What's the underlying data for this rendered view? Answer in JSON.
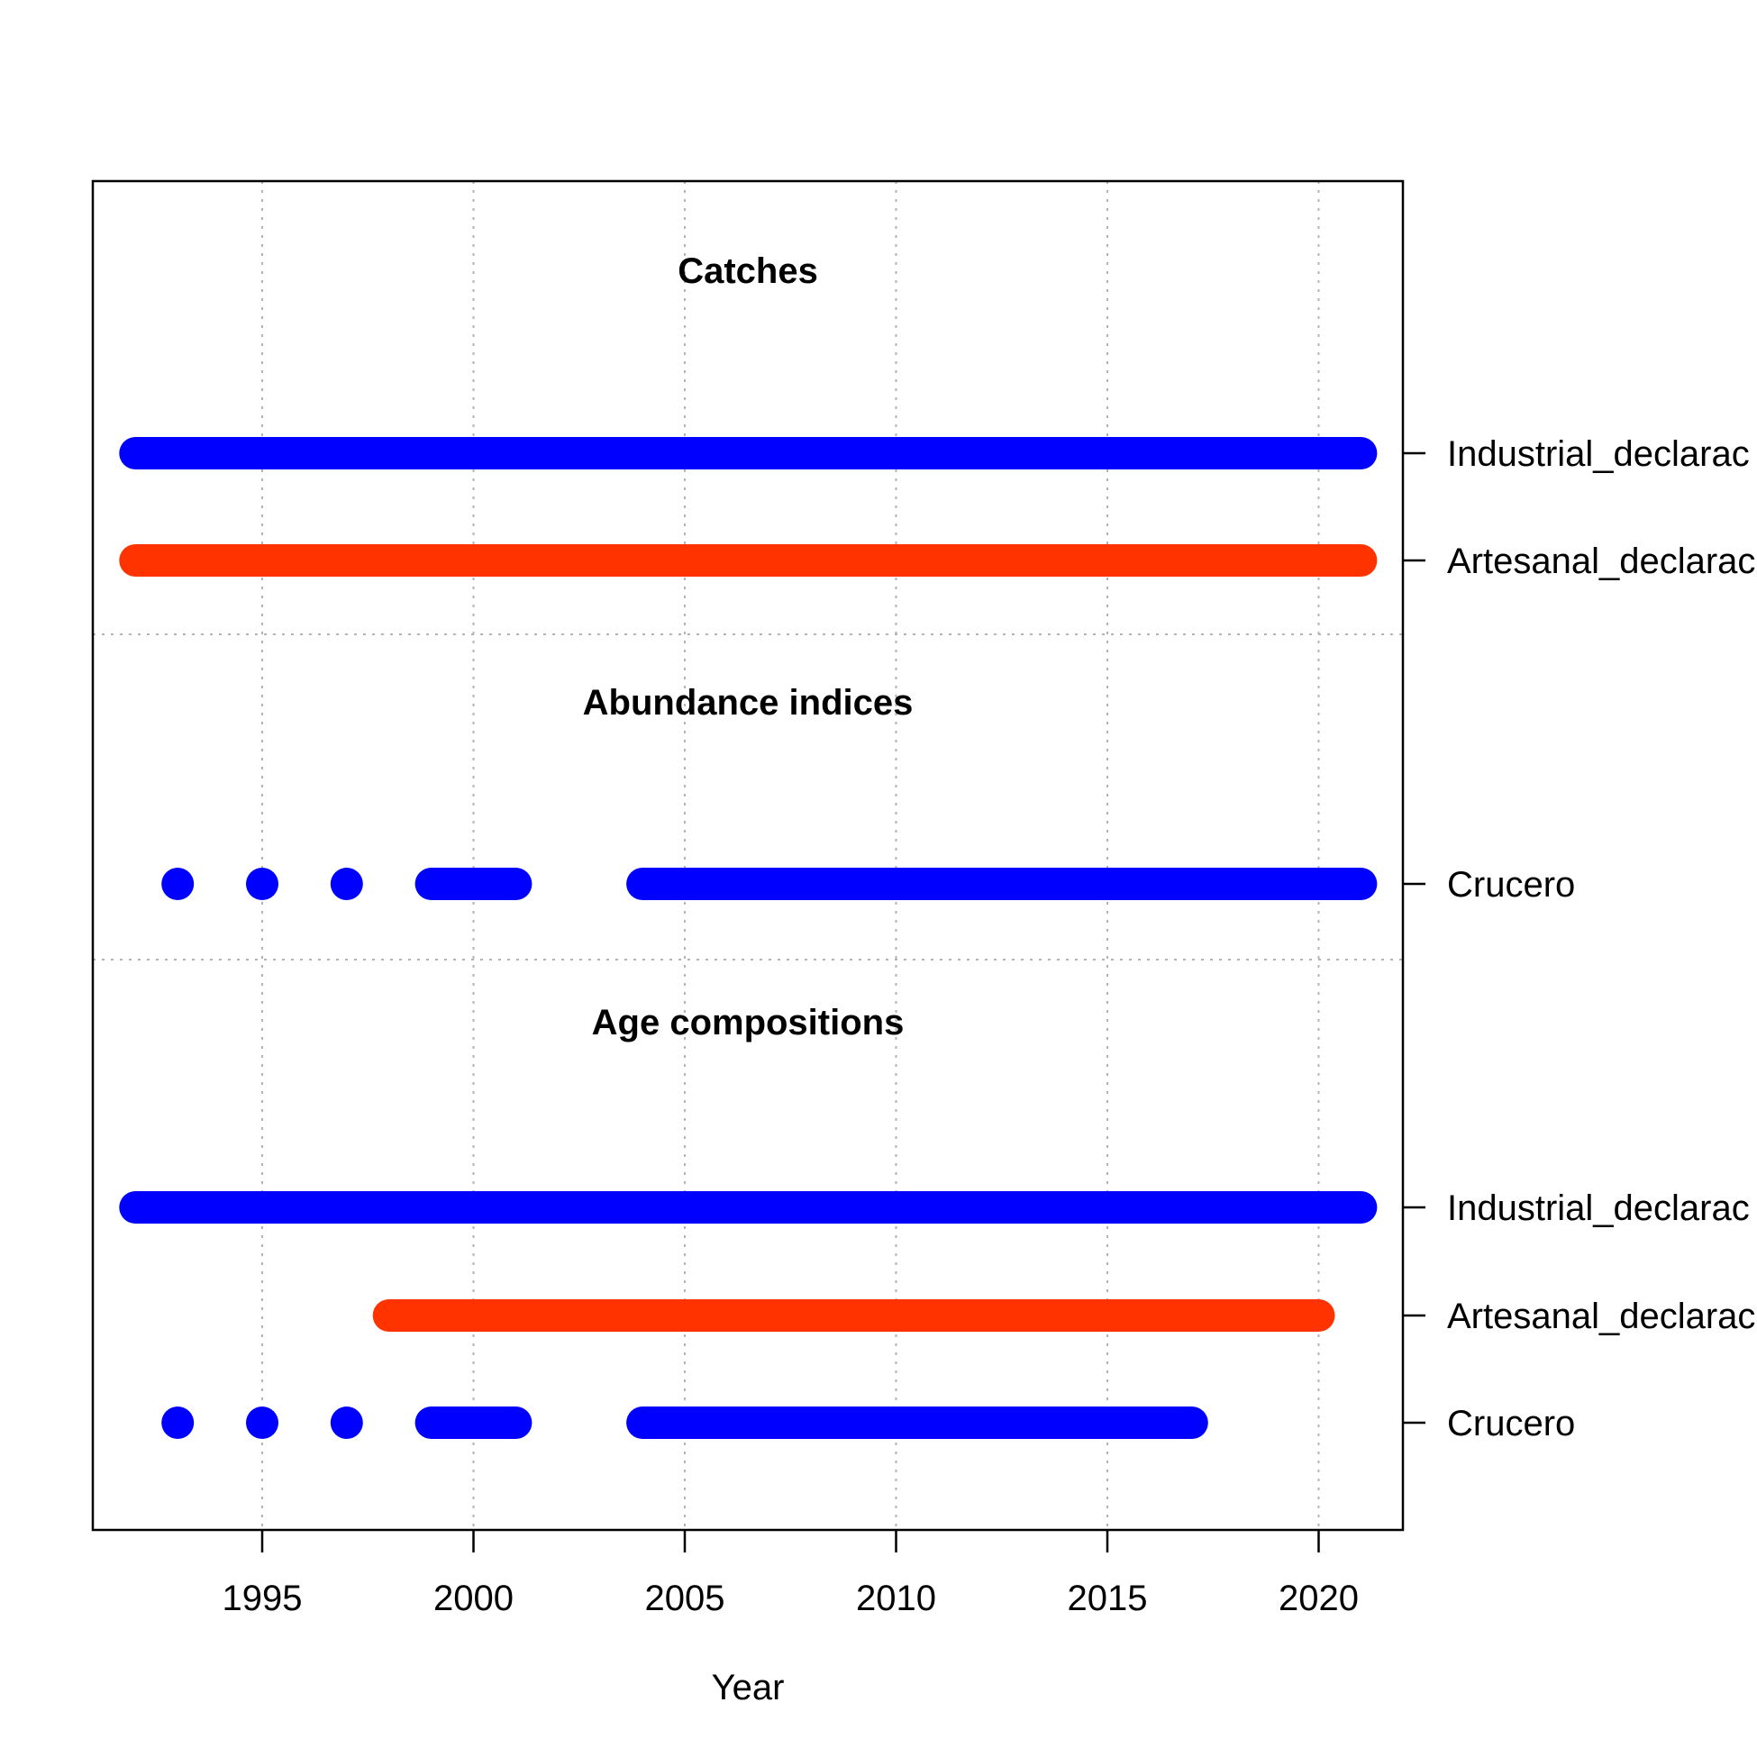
{
  "chart_data": {
    "type": "timeline",
    "xlabel": "Year",
    "x_ticks": [
      1995,
      2000,
      2005,
      2010,
      2015,
      2020
    ],
    "xlim": [
      1991,
      2022
    ],
    "grid": true,
    "colors": {
      "industrial": "#0000FF",
      "artesanal": "#FF3300",
      "crucero": "#0000FF"
    },
    "sections": [
      {
        "title": "Catches",
        "rows": [
          {
            "label": "Industrial_declarac",
            "color": "#0000FF",
            "years": [
              1992,
              1993,
              1994,
              1995,
              1996,
              1997,
              1998,
              1999,
              2000,
              2001,
              2002,
              2003,
              2004,
              2005,
              2006,
              2007,
              2008,
              2009,
              2010,
              2011,
              2012,
              2013,
              2014,
              2015,
              2016,
              2017,
              2018,
              2019,
              2020,
              2021
            ]
          },
          {
            "label": "Artesanal_declarac",
            "color": "#FF3300",
            "years": [
              1992,
              1993,
              1994,
              1995,
              1996,
              1997,
              1998,
              1999,
              2000,
              2001,
              2002,
              2003,
              2004,
              2005,
              2006,
              2007,
              2008,
              2009,
              2010,
              2011,
              2012,
              2013,
              2014,
              2015,
              2016,
              2017,
              2018,
              2019,
              2020,
              2021
            ]
          }
        ]
      },
      {
        "title": "Abundance indices",
        "rows": [
          {
            "label": "Crucero",
            "color": "#0000FF",
            "years": [
              1993,
              1995,
              1997,
              1999,
              2000,
              2001,
              2004,
              2005,
              2006,
              2007,
              2008,
              2009,
              2010,
              2011,
              2012,
              2013,
              2014,
              2015,
              2016,
              2017,
              2018,
              2019,
              2020,
              2021
            ]
          }
        ]
      },
      {
        "title": "Age compositions",
        "rows": [
          {
            "label": "Industrial_declarac",
            "color": "#0000FF",
            "years": [
              1992,
              1993,
              1994,
              1995,
              1996,
              1997,
              1998,
              1999,
              2000,
              2001,
              2002,
              2003,
              2004,
              2005,
              2006,
              2007,
              2008,
              2009,
              2010,
              2011,
              2012,
              2013,
              2014,
              2015,
              2016,
              2017,
              2018,
              2019,
              2020,
              2021
            ]
          },
          {
            "label": "Artesanal_declarac",
            "color": "#FF3300",
            "years": [
              1998,
              1999,
              2000,
              2001,
              2002,
              2003,
              2004,
              2005,
              2006,
              2007,
              2008,
              2009,
              2010,
              2011,
              2012,
              2013,
              2014,
              2015,
              2016,
              2017,
              2018,
              2019,
              2020
            ]
          },
          {
            "label": "Crucero",
            "color": "#0000FF",
            "years": [
              1993,
              1995,
              1997,
              1999,
              2000,
              2001,
              2004,
              2005,
              2006,
              2007,
              2008,
              2009,
              2010,
              2011,
              2012,
              2013,
              2014,
              2015,
              2016,
              2017
            ]
          }
        ]
      }
    ]
  }
}
